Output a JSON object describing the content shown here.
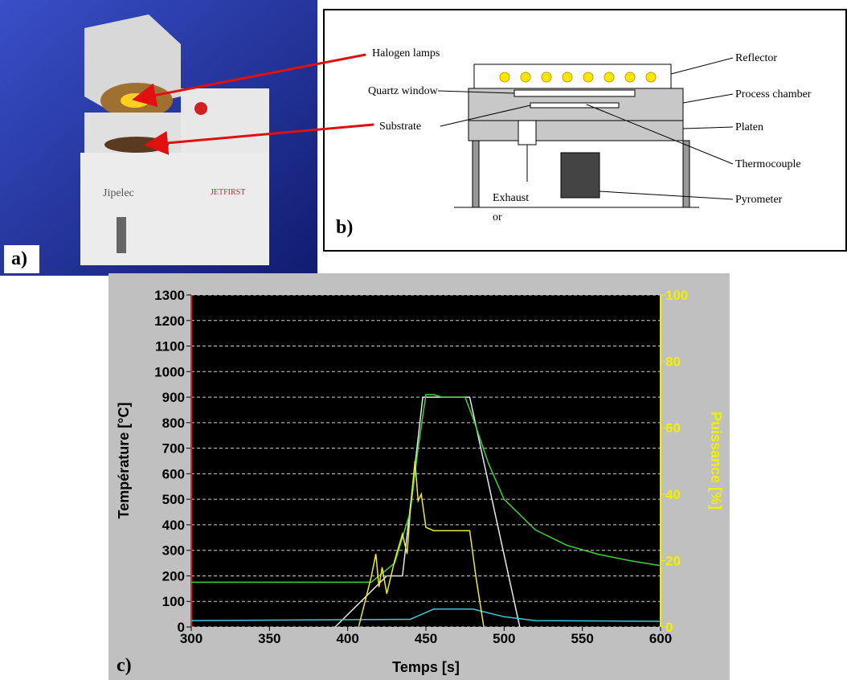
{
  "panel_a": {
    "label": "a)",
    "brand": "Jipelec",
    "model": "JETFIRST"
  },
  "panel_b": {
    "label": "b)",
    "labels": {
      "halogen": "Halogen lamps",
      "quartz": "Quartz window",
      "substrate": "Substrate",
      "exhaust": "Exhaust",
      "or": "or",
      "reflector": "Reflector",
      "chamber": "Process chamber",
      "platen": "Platen",
      "thermocouple": "Thermocouple",
      "pyrometer": "Pyrometer"
    }
  },
  "chart_data": {
    "type": "line",
    "label": "c)",
    "xlabel": "Temps  [s]",
    "ylabel": "Température  [°C]",
    "y2label": "Puissance  [%]",
    "xlim": [
      300,
      600
    ],
    "xticks": [
      300,
      350,
      400,
      450,
      500,
      550,
      600
    ],
    "ylim": [
      0,
      1300
    ],
    "yticks": [
      0,
      100,
      200,
      300,
      400,
      500,
      600,
      700,
      800,
      900,
      1000,
      1100,
      1200,
      1300
    ],
    "y2lim": [
      0,
      100
    ],
    "y2ticks": [
      0,
      20,
      40,
      60,
      80,
      100
    ],
    "y2_color": "#f0f000",
    "grid": true,
    "background": "#000000",
    "series": [
      {
        "color": "#e8e8e8",
        "x": [
          392,
          425,
          435,
          448,
          478,
          510
        ],
        "values": [
          0,
          200,
          200,
          900,
          900,
          0
        ]
      },
      {
        "color": "#40d040",
        "x": [
          300,
          415,
          420,
          430,
          440,
          445,
          450,
          455,
          460,
          475,
          480,
          490,
          500,
          520,
          540,
          560,
          580,
          600
        ],
        "values": [
          175,
          175,
          200,
          250,
          450,
          700,
          910,
          910,
          900,
          900,
          820,
          640,
          500,
          380,
          320,
          285,
          260,
          240
        ]
      },
      {
        "color": "#40c8d8",
        "x": [
          300,
          440,
          455,
          480,
          500,
          520,
          600
        ],
        "values": [
          25,
          30,
          70,
          70,
          40,
          25,
          22
        ]
      },
      {
        "color": "#e8e840",
        "axis": "y2",
        "x": [
          407,
          415,
          418,
          420,
          422,
          425,
          430,
          435,
          438,
          440,
          443,
          445,
          447,
          450,
          455,
          478,
          482,
          487
        ],
        "values": [
          0,
          15,
          22,
          12,
          18,
          10,
          20,
          28,
          22,
          35,
          50,
          38,
          40,
          30,
          29,
          29,
          15,
          0
        ]
      }
    ]
  }
}
